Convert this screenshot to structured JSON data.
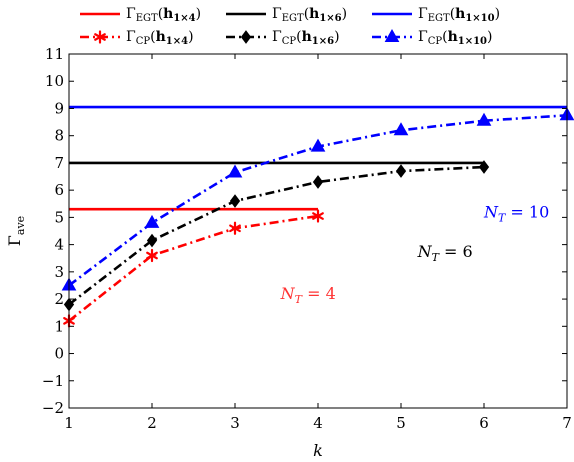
{
  "chart_data": {
    "type": "line",
    "title": "",
    "xlabel": "k",
    "ylabel": "Γ_ave",
    "xlim": [
      1,
      7
    ],
    "ylim": [
      -2,
      11
    ],
    "x_ticks": [
      1,
      2,
      3,
      4,
      5,
      6,
      7
    ],
    "y_ticks": [
      -2,
      -1,
      0,
      1,
      2,
      3,
      4,
      5,
      6,
      7,
      8,
      9,
      10,
      11
    ],
    "grid": false,
    "legend_position": "top",
    "series": [
      {
        "name": "Γ_EGT(h_1×4)",
        "style": "solid",
        "color": "#ff0000",
        "marker": "none",
        "x": [
          1,
          4
        ],
        "y": [
          5.3,
          5.3
        ]
      },
      {
        "name": "Γ_EGT(h_1×6)",
        "style": "solid",
        "color": "#000000",
        "marker": "none",
        "x": [
          1,
          6
        ],
        "y": [
          7.0,
          7.0
        ]
      },
      {
        "name": "Γ_EGT(h_1×10)",
        "style": "solid",
        "color": "#0000ff",
        "marker": "none",
        "x": [
          1,
          7
        ],
        "y": [
          9.05,
          9.05
        ]
      },
      {
        "name": "Γ_CP(h_1×4)",
        "style": "dashdot",
        "color": "#ff0000",
        "marker": "asterisk",
        "x": [
          1,
          2,
          3,
          4
        ],
        "y": [
          1.2,
          3.6,
          4.6,
          5.05
        ]
      },
      {
        "name": "Γ_CP(h_1×6)",
        "style": "dashdot",
        "color": "#000000",
        "marker": "diamond",
        "x": [
          1,
          2,
          3,
          4,
          5,
          6
        ],
        "y": [
          1.8,
          4.15,
          5.6,
          6.3,
          6.7,
          6.85
        ]
      },
      {
        "name": "Γ_CP(h_1×10)",
        "style": "dashdot",
        "color": "#0000ff",
        "marker": "triangle",
        "x": [
          1,
          2,
          3,
          4,
          5,
          6,
          7
        ],
        "y": [
          2.5,
          4.8,
          6.65,
          7.6,
          8.2,
          8.55,
          8.75
        ]
      }
    ],
    "annotations": [
      {
        "text": "N_T = 4",
        "x": 3.55,
        "y": 2.0,
        "color": "#ff3333"
      },
      {
        "text": "N_T = 6",
        "x": 5.2,
        "y": 3.55,
        "color": "#000000"
      },
      {
        "text": "N_T = 10",
        "x": 6.0,
        "y": 5.0,
        "color": "#0000ff"
      }
    ]
  }
}
